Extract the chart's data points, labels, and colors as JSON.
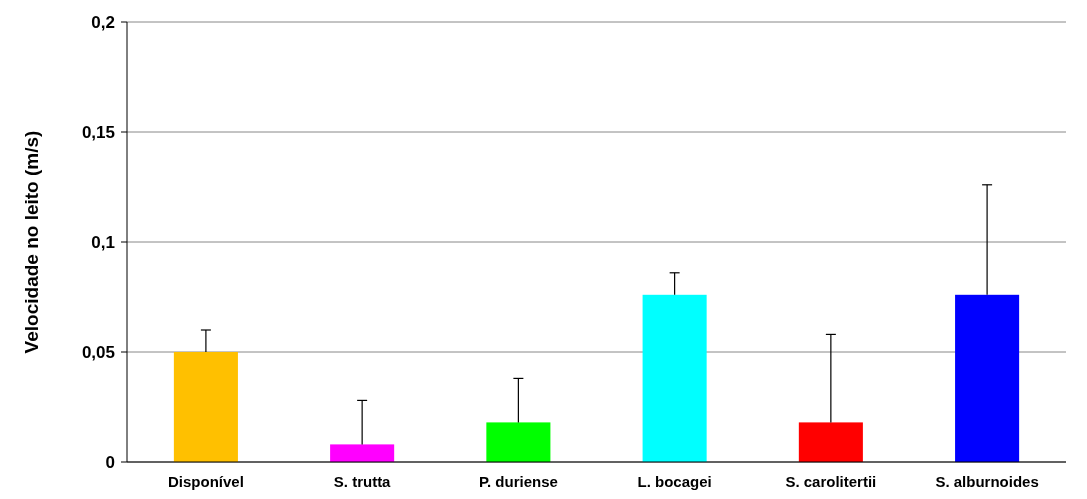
{
  "chart_data": {
    "type": "bar",
    "ylabel": "Velocidade no leito (m/s)",
    "categories": [
      "Disponível",
      "S. trutta",
      "P. duriense",
      "L. bocagei",
      "S. carolitertii",
      "S. alburnoides"
    ],
    "values": [
      0.05,
      0.008,
      0.018,
      0.076,
      0.018,
      0.076
    ],
    "colors": [
      "#ffc000",
      "#ff00ff",
      "#00ff00",
      "#00ffff",
      "#ff0000",
      "#0000ff"
    ],
    "errors": [
      [
        0.05,
        0.06
      ],
      [
        0.008,
        0.028
      ],
      [
        0.018,
        0.038
      ],
      [
        0.076,
        0.086
      ],
      [
        0.018,
        0.058
      ],
      [
        0.076,
        0.126
      ]
    ],
    "ylim": [
      0,
      0.2
    ],
    "yticks": [
      {
        "value": 0,
        "label": "0"
      },
      {
        "value": 0.05,
        "label": "0,05"
      },
      {
        "value": 0.1,
        "label": "0,1"
      },
      {
        "value": 0.15,
        "label": "0,15"
      },
      {
        "value": 0.2,
        "label": "0,2"
      }
    ],
    "grid": "y"
  }
}
